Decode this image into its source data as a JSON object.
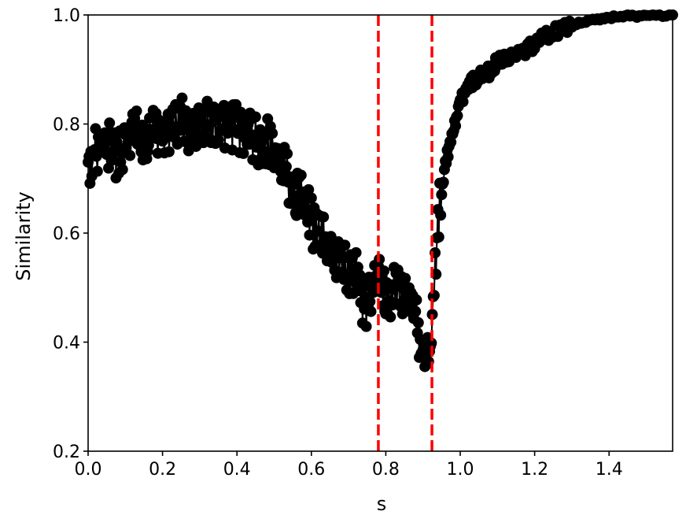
{
  "chart_data": {
    "type": "line",
    "title": "",
    "xlabel": "s",
    "ylabel": "Similarity",
    "xlim": [
      0,
      1.5708
    ],
    "ylim": [
      0.2,
      1.0
    ],
    "xticks": [
      "0.0",
      "0.2",
      "0.4",
      "0.6",
      "0.8",
      "1.0",
      "1.2",
      "1.4"
    ],
    "yticks": [
      "0.2",
      "0.4",
      "0.6",
      "0.8",
      "1.0"
    ],
    "grid": false,
    "legend": null,
    "marker": "circle",
    "line_color": "#000000",
    "vlines": [
      {
        "x": 0.78,
        "color": "#ff0000",
        "style": "dashed"
      },
      {
        "x": 0.924,
        "color": "#ff0000",
        "style": "dashed"
      }
    ],
    "series": [
      {
        "name": "similarity",
        "x": [
          0.0,
          0.02,
          0.04,
          0.06,
          0.08,
          0.1,
          0.12,
          0.14,
          0.16,
          0.18,
          0.2,
          0.22,
          0.24,
          0.26,
          0.28,
          0.3,
          0.32,
          0.34,
          0.36,
          0.38,
          0.4,
          0.42,
          0.44,
          0.46,
          0.48,
          0.5,
          0.52,
          0.54,
          0.56,
          0.58,
          0.6,
          0.62,
          0.64,
          0.66,
          0.68,
          0.7,
          0.72,
          0.74,
          0.76,
          0.78,
          0.8,
          0.82,
          0.84,
          0.86,
          0.88,
          0.9,
          0.92,
          0.94,
          0.96,
          0.98,
          1.0,
          1.02,
          1.04,
          1.06,
          1.08,
          1.1,
          1.15,
          1.2,
          1.25,
          1.3,
          1.35,
          1.4,
          1.45,
          1.5,
          1.5708
        ],
        "values": [
          0.73,
          0.75,
          0.77,
          0.76,
          0.74,
          0.76,
          0.79,
          0.77,
          0.78,
          0.8,
          0.77,
          0.79,
          0.8,
          0.81,
          0.78,
          0.79,
          0.8,
          0.8,
          0.79,
          0.8,
          0.79,
          0.78,
          0.78,
          0.76,
          0.77,
          0.75,
          0.72,
          0.7,
          0.67,
          0.66,
          0.62,
          0.6,
          0.58,
          0.56,
          0.55,
          0.53,
          0.52,
          0.46,
          0.48,
          0.55,
          0.47,
          0.5,
          0.49,
          0.5,
          0.47,
          0.35,
          0.38,
          0.62,
          0.73,
          0.78,
          0.84,
          0.87,
          0.88,
          0.89,
          0.9,
          0.91,
          0.93,
          0.95,
          0.97,
          0.98,
          0.99,
          0.995,
          0.998,
          0.999,
          1.0
        ]
      }
    ]
  }
}
